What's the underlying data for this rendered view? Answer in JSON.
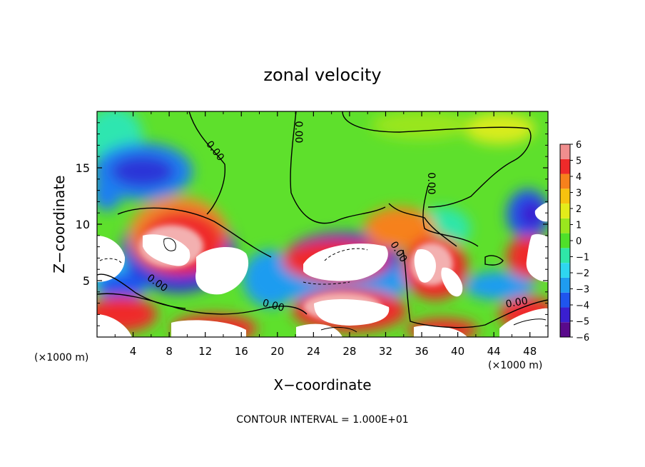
{
  "chart_data": {
    "type": "heatmap",
    "title": "zonal velocity",
    "xlabel": "X−coordinate",
    "ylabel": "Z−coordinate",
    "x_unit_left": "(×1000 m)",
    "x_unit_right": "(×1000 m)",
    "footer": "CONTOUR INTERVAL = 1.000E+01",
    "xlim": [
      0,
      50
    ],
    "ylim": [
      0,
      20
    ],
    "x_ticks": [
      4,
      8,
      12,
      16,
      20,
      24,
      28,
      32,
      36,
      40,
      44,
      48
    ],
    "y_ticks": [
      5,
      10,
      15
    ],
    "colorbar": {
      "min": -6,
      "max": 6,
      "ticks": [
        6,
        5,
        4,
        3,
        2,
        1,
        0,
        -1,
        -2,
        -3,
        -4,
        -5,
        -6
      ],
      "colors": [
        "#5a0a8c",
        "#3a1fd0",
        "#1f55ee",
        "#1f9cf0",
        "#2ed6f0",
        "#2fe6a8",
        "#4fe02a",
        "#9ae61e",
        "#e4ec1a",
        "#f7c20f",
        "#f6811c",
        "#ef2a2a",
        "#f08e8e"
      ]
    },
    "contour_labels": [
      "0.00",
      "0.00",
      "0.00",
      "0.00",
      "0.00",
      "0.00"
    ],
    "grid": false
  }
}
